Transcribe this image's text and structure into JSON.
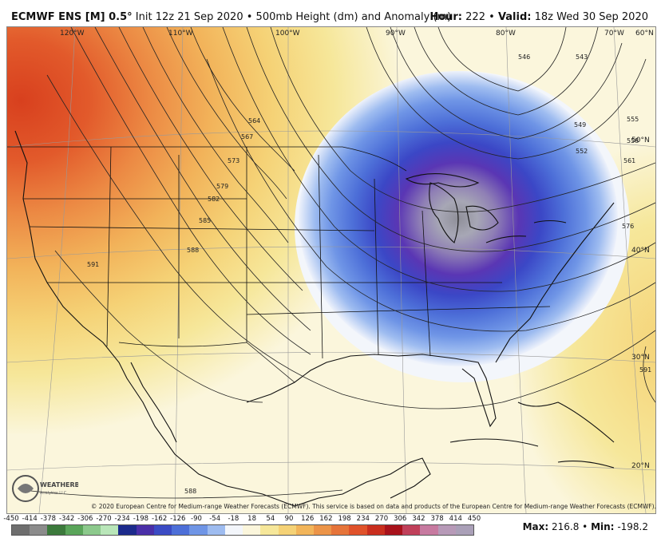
{
  "header": {
    "model": "ECMWF ENS [M] 0.5°",
    "init": "Init 12z 21 Sep 2020",
    "field": "500mb Height (dm) and Anomaly (m)",
    "hour_label": "Hour:",
    "hour_value": "222",
    "valid_label": "Valid:",
    "valid_value": "18z Wed 30 Sep 2020",
    "separator": "•"
  },
  "map": {
    "longitude_labels": [
      "120°W",
      "110°W",
      "100°W",
      "90°W",
      "80°W",
      "70°W",
      "60°N"
    ],
    "latitude_labels": [
      "50°N",
      "40°N",
      "30°N",
      "20°N"
    ],
    "contour_labels": [
      "564",
      "567",
      "573",
      "579",
      "582",
      "585",
      "588",
      "591",
      "546",
      "543",
      "549",
      "552",
      "555",
      "558",
      "561",
      "576",
      "591",
      "588"
    ],
    "colors": {
      "background": "#fbf6dc",
      "ocean_warm": "#f6e79a",
      "ridge_core": "#e0522a",
      "trough_core": "#9a9aa6",
      "trough_ring": "#5535b8",
      "white_ring": "#f3f6fb"
    }
  },
  "footer": {
    "copyright": "© 2020 European Centre for Medium-range Weather Forecasts (ECMWF). This service is based on data and products of the European Centre for Medium-range Weather Forecasts (ECMWF).",
    "logo_text": "WEATHERBELL",
    "logo_subtext": "Analytics LLC",
    "max_label": "Max:",
    "max_value": "216.8",
    "min_label": "Min:",
    "min_value": "-198.2",
    "separator": "•"
  },
  "colorbar": {
    "ticks": [
      "-450",
      "-414",
      "-378",
      "-342",
      "-306",
      "-270",
      "-234",
      "-198",
      "-162",
      "-126",
      "-90",
      "-54",
      "-18",
      "18",
      "54",
      "90",
      "126",
      "162",
      "198",
      "234",
      "270",
      "306",
      "342",
      "378",
      "414",
      "450"
    ],
    "colors": [
      "#6e6e6e",
      "#8c8c8c",
      "#3c7a3c",
      "#5aa55a",
      "#8cc98c",
      "#b9e6b9",
      "#1c2a8c",
      "#4a2fa8",
      "#3b4bc4",
      "#4d6fd8",
      "#6f95e6",
      "#9ebcf0",
      "#f3f6fb",
      "#fbf6dc",
      "#f6e79a",
      "#f5d276",
      "#f2b55a",
      "#ec9448",
      "#e6743a",
      "#e0522a",
      "#c92e1e",
      "#a8121b",
      "#c0405a",
      "#c77aa0",
      "#b79ab8",
      "#aaa0b8"
    ]
  }
}
